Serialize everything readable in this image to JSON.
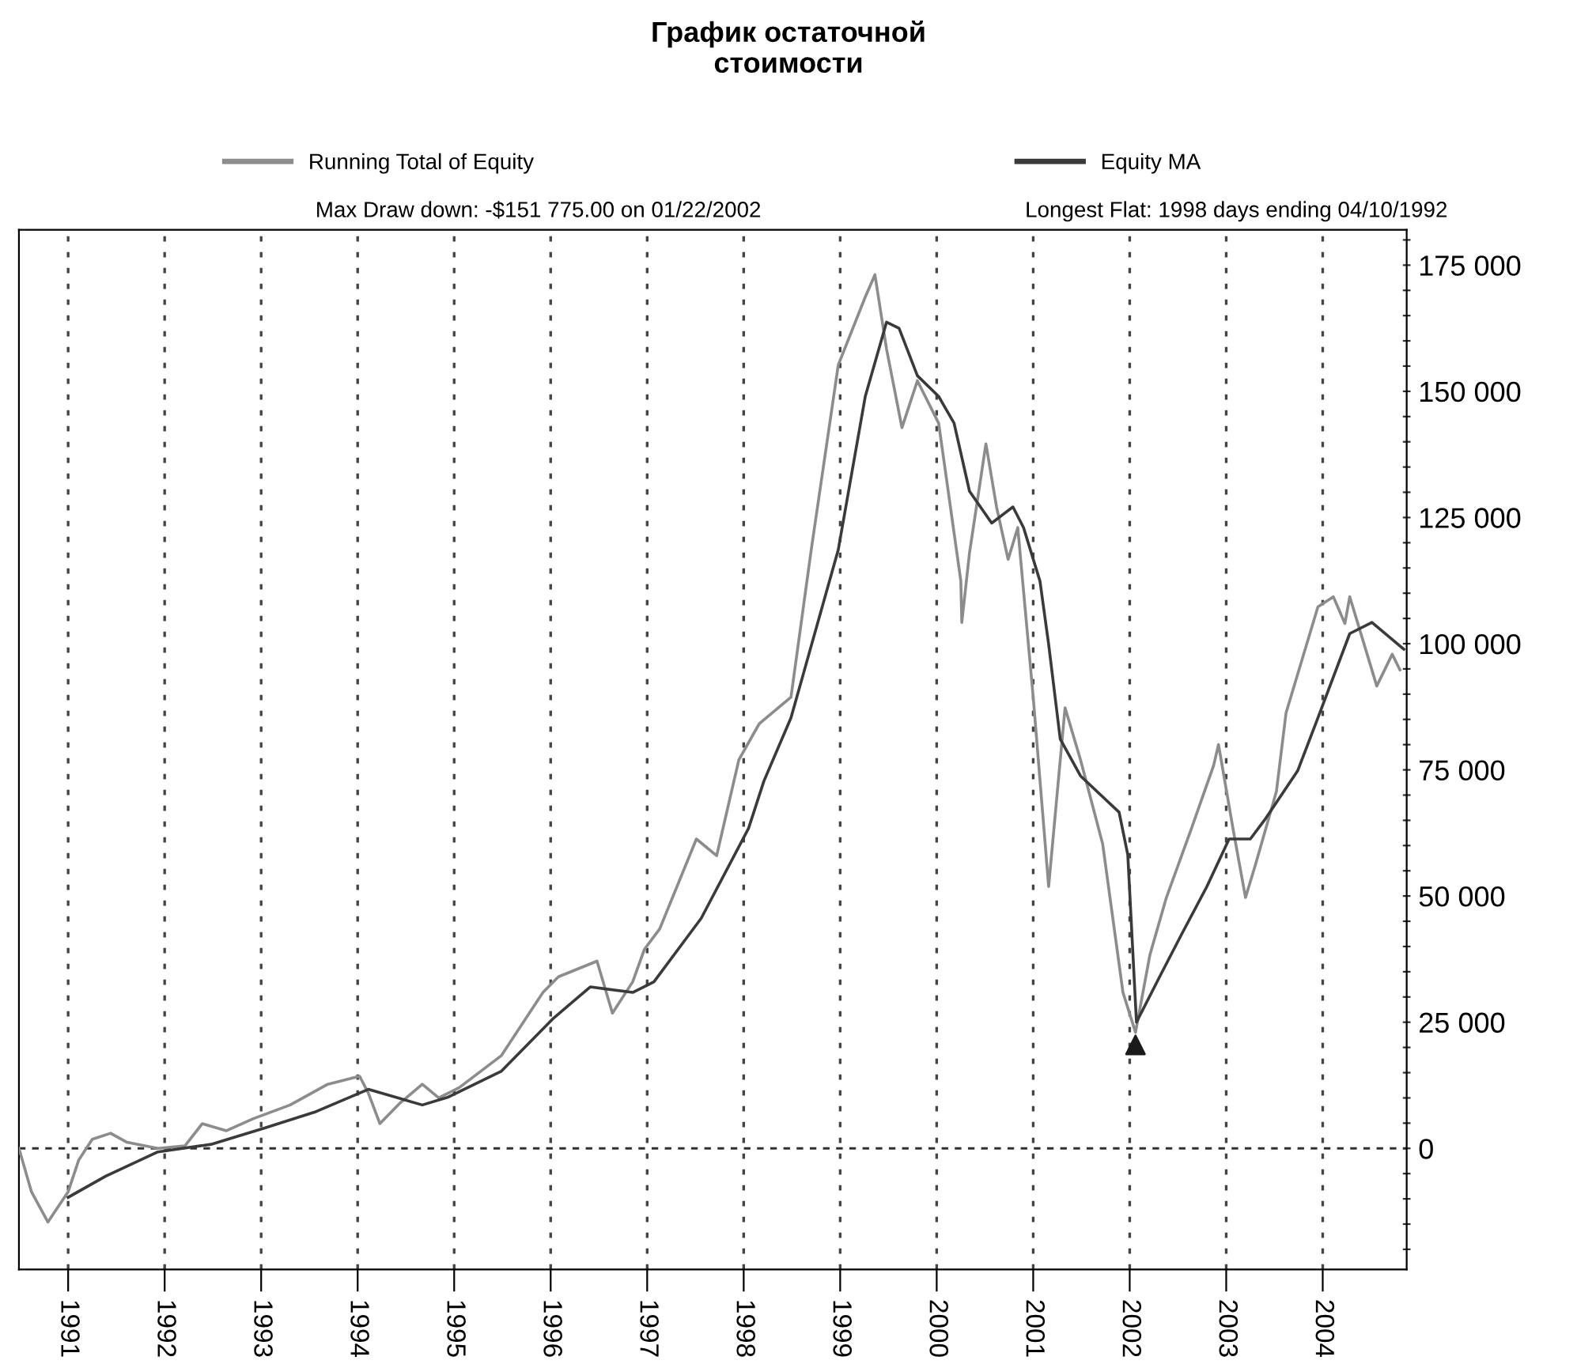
{
  "chart_data": {
    "type": "line",
    "title": "График остаточной\nстоимости",
    "annotations": [
      "Max Draw down: -$151 775.00 on 01/22/2002",
      "Longest Flat: 1998 days ending 04/10/1992"
    ],
    "xlim": [
      1990.49,
      2004.87
    ],
    "ylim": [
      -24000,
      182000
    ],
    "xticks": [
      1991,
      1992,
      1993,
      1994,
      1995,
      1996,
      1997,
      1998,
      1999,
      2000,
      2001,
      2002,
      2003,
      2004
    ],
    "yticks": [
      {
        "value": -20000,
        "label": null
      },
      {
        "value": -15000,
        "label": null
      },
      {
        "value": -10000,
        "label": null
      },
      {
        "value": -5000,
        "label": null
      },
      0,
      {
        "value": 5000,
        "label": null
      },
      {
        "value": 10000,
        "label": null
      },
      {
        "value": 15000,
        "label": null
      },
      {
        "value": 20000,
        "label": null
      },
      {
        "value": 25000,
        "label": "25 000"
      },
      {
        "value": 30000,
        "label": null
      },
      {
        "value": 35000,
        "label": null
      },
      {
        "value": 40000,
        "label": null
      },
      {
        "value": 45000,
        "label": null
      },
      {
        "value": 50000,
        "label": "50 000"
      },
      {
        "value": 55000,
        "label": null
      },
      {
        "value": 60000,
        "label": null
      },
      {
        "value": 65000,
        "label": null
      },
      {
        "value": 70000,
        "label": null
      },
      {
        "value": 75000,
        "label": "75 000"
      },
      {
        "value": 80000,
        "label": null
      },
      {
        "value": 85000,
        "label": null
      },
      {
        "value": 90000,
        "label": null
      },
      {
        "value": 95000,
        "label": null
      },
      {
        "value": 100000,
        "label": "100 000"
      },
      {
        "value": 105000,
        "label": null
      },
      {
        "value": 110000,
        "label": null
      },
      {
        "value": 115000,
        "label": null
      },
      {
        "value": 120000,
        "label": null
      },
      {
        "value": 125000,
        "label": "125 000"
      },
      {
        "value": 130000,
        "label": null
      },
      {
        "value": 135000,
        "label": null
      },
      {
        "value": 140000,
        "label": null
      },
      {
        "value": 145000,
        "label": null
      },
      {
        "value": 150000,
        "label": "150 000"
      },
      {
        "value": 155000,
        "label": null
      },
      {
        "value": 160000,
        "label": null
      },
      {
        "value": 165000,
        "label": null
      },
      {
        "value": 170000,
        "label": null
      },
      {
        "value": 175000,
        "label": "175 000"
      },
      {
        "value": 180000,
        "label": null
      }
    ],
    "grid": "x",
    "legend": "top",
    "ref_lines": [
      {
        "axis": "y",
        "value": 0,
        "line_style": "dashed",
        "color": "#303030"
      }
    ],
    "series": [
      {
        "name": "Running Total of Equity",
        "color": "#8c8c8c",
        "x": [
          1990.49,
          1990.62,
          1990.79,
          1991.0,
          1991.11,
          1991.25,
          1991.44,
          1991.61,
          1991.93,
          1992.21,
          1992.39,
          1992.64,
          1992.92,
          1993.3,
          1993.69,
          1994.02,
          1994.11,
          1994.23,
          1994.44,
          1994.67,
          1994.84,
          1995.05,
          1995.49,
          1995.92,
          1996.08,
          1996.48,
          1996.64,
          1996.85,
          1996.97,
          1997.13,
          1997.51,
          1997.72,
          1997.95,
          1998.16,
          1998.49,
          1998.7,
          1998.98,
          1999.26,
          1999.36,
          1999.48,
          1999.64,
          1999.8,
          2000.02,
          2000.25,
          2000.26,
          2000.34,
          2000.51,
          2000.62,
          2000.74,
          2000.84,
          2001.0,
          2001.16,
          2001.33,
          2001.49,
          2001.72,
          2001.93,
          2002.06,
          2002.21,
          2002.38,
          2002.64,
          2002.87,
          2002.92,
          2003.08,
          2003.2,
          2003.3,
          2003.52,
          2003.62,
          2003.95,
          2004.11,
          2004.23,
          2004.28,
          2004.56,
          2004.72,
          2004.8
        ],
        "values": [
          0,
          -8600,
          -14600,
          -8600,
          -2300,
          1800,
          3000,
          1200,
          0,
          500,
          4900,
          3500,
          5900,
          8600,
          12700,
          14300,
          11000,
          4900,
          9000,
          12700,
          10000,
          12000,
          18400,
          30900,
          34000,
          37100,
          26800,
          33000,
          39400,
          43500,
          61300,
          58000,
          77000,
          84100,
          89400,
          118600,
          155200,
          168700,
          173100,
          158400,
          142800,
          152100,
          143700,
          112400,
          104200,
          118000,
          139600,
          127100,
          116700,
          123000,
          89400,
          51900,
          87300,
          77000,
          60300,
          30900,
          23000,
          38400,
          49700,
          63400,
          75900,
          80000,
          62300,
          49700,
          56000,
          70700,
          86300,
          107300,
          109300,
          104000,
          109300,
          91600,
          97900,
          94800
        ]
      },
      {
        "name": "Equity MA",
        "color": "#3a3a3a",
        "x": [
          1991.0,
          1991.39,
          1991.93,
          1992.48,
          1993.03,
          1993.57,
          1994.11,
          1994.67,
          1994.93,
          1995.49,
          1996.03,
          1996.41,
          1996.85,
          1997.07,
          1997.56,
          1998.05,
          1998.21,
          1998.49,
          1998.98,
          1999.26,
          1999.48,
          1999.61,
          1999.8,
          2000.02,
          2000.18,
          2000.34,
          2000.57,
          2000.79,
          2000.9,
          2001.07,
          2001.16,
          2001.28,
          2001.49,
          2001.89,
          2001.98,
          2002.07,
          2002.31,
          2002.54,
          2002.8,
          2003.03,
          2003.25,
          2003.41,
          2003.74,
          2003.95,
          2004.28,
          2004.51,
          2004.84
        ],
        "values": [
          -9700,
          -5500,
          -700,
          800,
          4000,
          7300,
          11700,
          8600,
          10100,
          15300,
          25800,
          32000,
          30900,
          33000,
          45600,
          63400,
          72800,
          85300,
          118600,
          149000,
          163700,
          162500,
          153100,
          149000,
          143700,
          130200,
          123900,
          127100,
          123000,
          112400,
          99900,
          81100,
          73800,
          66600,
          58200,
          25000,
          34000,
          42500,
          51900,
          61300,
          61300,
          65400,
          74800,
          85300,
          102000,
          104200,
          98900
        ]
      },
      {
        "type": "scatter",
        "marker": "triangle",
        "color": "#1a1a1a",
        "x": [
          2002.06
        ],
        "values": [
          20500
        ]
      }
    ]
  }
}
